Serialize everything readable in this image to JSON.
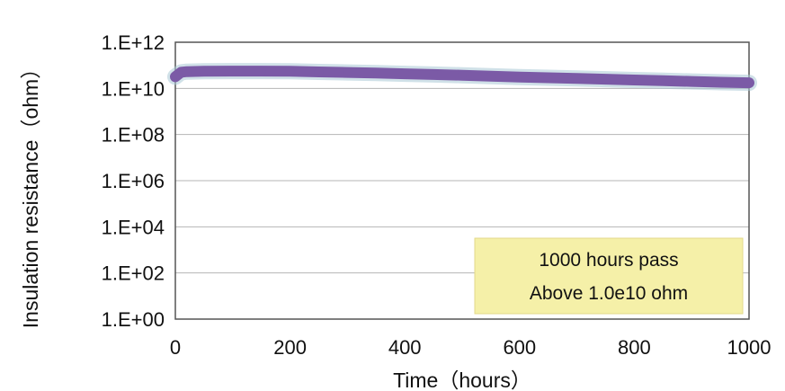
{
  "chart_data": {
    "type": "line",
    "title": "",
    "xlabel": "Time（hours）",
    "ylabel": "Insulation resistance（ohm）",
    "x_ticks": [
      "0",
      "200",
      "400",
      "600",
      "800",
      "1000"
    ],
    "y_ticks": [
      "1.E+00",
      "1.E+02",
      "1.E+04",
      "1.E+06",
      "1.E+08",
      "1.E+10",
      "1.E+12"
    ],
    "xlim": [
      0,
      1000
    ],
    "ylim": [
      1,
      1000000000000.0
    ],
    "y_scale": "log",
    "grid": "horizontal",
    "series": [
      {
        "color": "#7b5aa6",
        "x": [
          0,
          5,
          10,
          20,
          50,
          100,
          150,
          200,
          250,
          300,
          350,
          400,
          450,
          500,
          550,
          600,
          650,
          700,
          750,
          800,
          850,
          900,
          950,
          1000
        ],
        "y": [
          32000000000.0,
          40000000000.0,
          50000000000.0,
          53000000000.0,
          55000000000.0,
          56000000000.0,
          56000000000.0,
          55000000000.0,
          52000000000.0,
          49000000000.0,
          46000000000.0,
          43000000000.0,
          40000000000.0,
          37000000000.0,
          34000000000.0,
          31000000000.0,
          29000000000.0,
          27000000000.0,
          25000000000.0,
          23000000000.0,
          21500000000.0,
          20000000000.0,
          18500000000.0,
          17500000000.0
        ]
      }
    ],
    "annotation": {
      "lines": [
        "1000 hours pass",
        "Above 1.0e10 ohm"
      ],
      "background": "#f5f0a8"
    }
  }
}
